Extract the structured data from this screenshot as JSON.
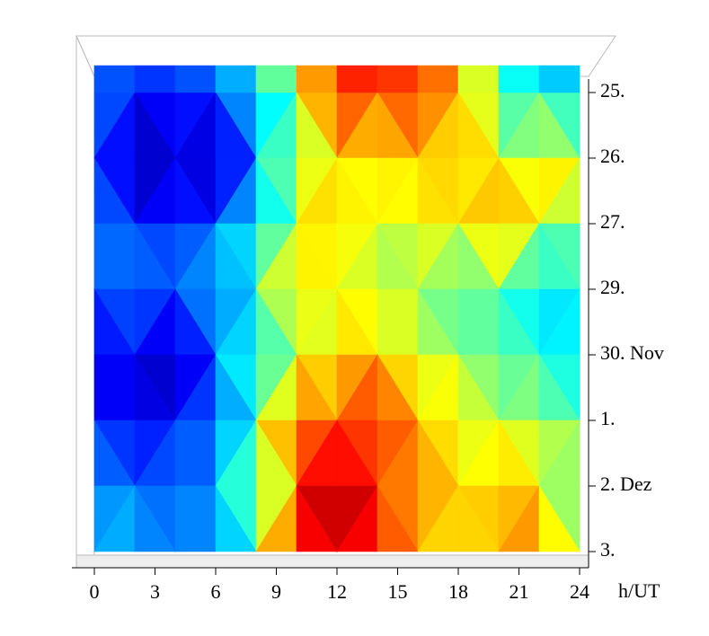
{
  "chart_data": {
    "type": "surface",
    "colormap": "jet",
    "x": [
      0,
      2,
      4,
      6,
      8,
      10,
      12,
      14,
      16,
      18,
      20,
      22,
      24
    ],
    "xlim": [
      0,
      24
    ],
    "xticks": [
      0,
      3,
      6,
      9,
      12,
      15,
      18,
      21,
      24
    ],
    "x_label": "h/UT",
    "y_categories": [
      "25.",
      "26.",
      "27.",
      "29.",
      "30. Nov",
      "1.",
      "2. Dez",
      "3."
    ],
    "z": [
      [
        0.35,
        0.3,
        0.3,
        0.35,
        0.45,
        0.65,
        0.88,
        0.85,
        0.85,
        0.75,
        0.55,
        0.4,
        0.45
      ],
      [
        0.3,
        0.2,
        0.15,
        0.2,
        0.3,
        0.6,
        0.7,
        0.7,
        0.72,
        0.7,
        0.68,
        0.65,
        0.72
      ],
      [
        0.35,
        0.3,
        0.3,
        0.35,
        0.45,
        0.7,
        0.72,
        0.65,
        0.68,
        0.72,
        0.78,
        0.7,
        0.5
      ],
      [
        0.38,
        0.35,
        0.35,
        0.4,
        0.5,
        0.72,
        0.65,
        0.65,
        0.55,
        0.55,
        0.5,
        0.45,
        0.4
      ],
      [
        0.25,
        0.2,
        0.2,
        0.3,
        0.5,
        0.62,
        0.7,
        0.75,
        0.65,
        0.6,
        0.55,
        0.5,
        0.48
      ],
      [
        0.3,
        0.25,
        0.25,
        0.35,
        0.55,
        0.8,
        0.85,
        0.85,
        0.75,
        0.68,
        0.62,
        0.6,
        0.5
      ],
      [
        0.35,
        0.35,
        0.35,
        0.4,
        0.55,
        0.85,
        0.95,
        0.85,
        0.78,
        0.7,
        0.72,
        0.75,
        0.55
      ],
      [
        0.45,
        0.4,
        0.35,
        0.35,
        0.55,
        0.85,
        1.0,
        0.85,
        0.75,
        0.7,
        0.75,
        0.8,
        0.5
      ]
    ]
  }
}
